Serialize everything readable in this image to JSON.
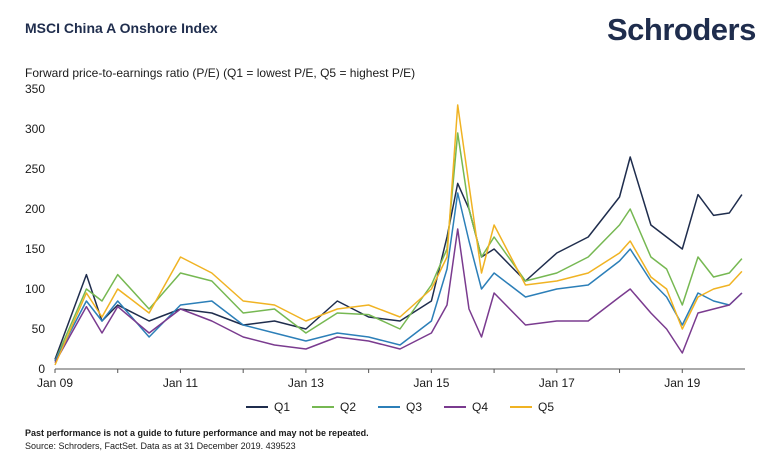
{
  "header": {
    "title": "MSCI China A Onshore Index",
    "brand": "Schroders"
  },
  "footer": {
    "note": "Past performance is not a guide to future performance and may not be repeated.",
    "source": "Source: Schroders, FactSet. Data as at 31 December 2019. 439523"
  },
  "chart_data": {
    "type": "line",
    "title": "Forward price-to-earnings ratio (P/E) (Q1 = lowest P/E, Q5 = highest P/E)",
    "xlabel": "",
    "ylabel": "",
    "ylim": [
      0,
      350
    ],
    "yticks": [
      0,
      50,
      100,
      150,
      200,
      250,
      300,
      350
    ],
    "x_tick_labels": [
      "Jan 09",
      "Jan 11",
      "Jan 13",
      "Jan 15",
      "Jan 17",
      "Jan 19"
    ],
    "x_range": [
      "2009-01",
      "2019-12"
    ],
    "x_years": [
      2009,
      2009.5,
      2009.75,
      2010,
      2010.5,
      2011,
      2011.5,
      2012,
      2012.5,
      2013,
      2013.5,
      2014,
      2014.5,
      2015,
      2015.25,
      2015.42,
      2015.6,
      2015.8,
      2016,
      2016.5,
      2017,
      2017.5,
      2018,
      2018.17,
      2018.5,
      2018.75,
      2019,
      2019.25,
      2019.5,
      2019.75,
      2019.95
    ],
    "grid": false,
    "legend_position": "bottom",
    "series": [
      {
        "name": "Q1",
        "color": "#1f2d4d",
        "values": [
          12,
          118,
          60,
          80,
          60,
          75,
          70,
          55,
          60,
          50,
          85,
          65,
          60,
          85,
          165,
          232,
          200,
          140,
          150,
          110,
          145,
          165,
          215,
          265,
          180,
          165,
          150,
          218,
          192,
          195,
          218
        ]
      },
      {
        "name": "Q2",
        "color": "#76b852",
        "values": [
          10,
          100,
          85,
          118,
          75,
          120,
          110,
          70,
          75,
          45,
          70,
          68,
          50,
          105,
          150,
          295,
          200,
          140,
          165,
          110,
          120,
          140,
          180,
          200,
          140,
          125,
          80,
          140,
          115,
          120,
          138
        ]
      },
      {
        "name": "Q3",
        "color": "#2c7fb8",
        "values": [
          10,
          85,
          60,
          85,
          40,
          80,
          85,
          55,
          45,
          35,
          45,
          40,
          30,
          60,
          125,
          220,
          160,
          100,
          120,
          90,
          100,
          105,
          135,
          150,
          110,
          90,
          55,
          95,
          85,
          80,
          95
        ]
      },
      {
        "name": "Q4",
        "color": "#7a3b8f",
        "values": [
          8,
          78,
          45,
          78,
          45,
          75,
          60,
          40,
          30,
          25,
          40,
          35,
          25,
          45,
          80,
          175,
          75,
          40,
          95,
          55,
          60,
          60,
          90,
          100,
          70,
          50,
          20,
          70,
          75,
          80,
          95
        ]
      },
      {
        "name": "Q5",
        "color": "#f0b323",
        "values": [
          5,
          95,
          65,
          100,
          70,
          140,
          120,
          85,
          80,
          60,
          75,
          80,
          65,
          100,
          140,
          330,
          230,
          120,
          180,
          105,
          110,
          120,
          145,
          160,
          115,
          100,
          50,
          90,
          100,
          105,
          122
        ]
      }
    ]
  }
}
